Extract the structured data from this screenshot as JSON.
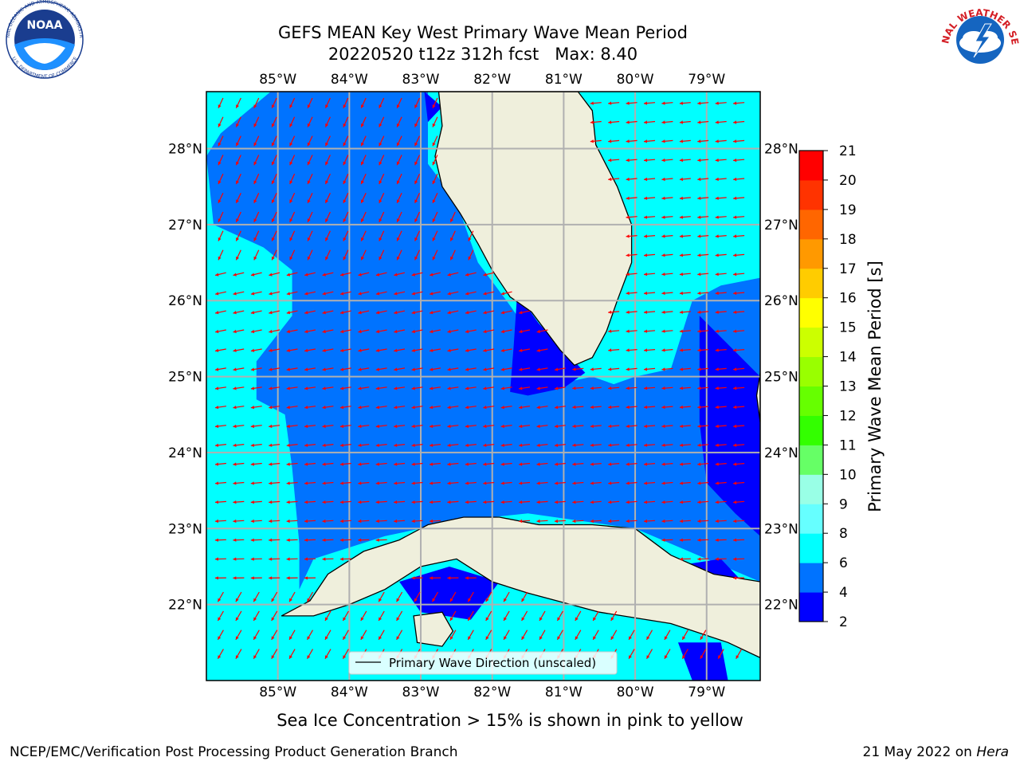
{
  "chart_data": {
    "type": "heatmap",
    "title_line1": "GEFS MEAN Key West Primary Wave Mean Period",
    "title_line2": "20220520 t12z 312h fcst   Max: 8.40",
    "region": "Key West",
    "max_value": 8.4,
    "x_axis": {
      "lim": [
        -86.0,
        -78.25
      ],
      "ticks": [
        -85,
        -84,
        -83,
        -82,
        -81,
        -80,
        -79
      ],
      "tick_labels": [
        "85°W",
        "84°W",
        "83°W",
        "82°W",
        "81°W",
        "80°W",
        "79°W"
      ]
    },
    "y_axis": {
      "lim": [
        21.0,
        28.75
      ],
      "ticks": [
        22,
        23,
        24,
        25,
        26,
        27,
        28
      ],
      "tick_labels": [
        "22°N",
        "23°N",
        "24°N",
        "25°N",
        "26°N",
        "27°N",
        "28°N"
      ]
    },
    "grid": true,
    "colorbar": {
      "label": "Primary Wave Mean Period [s]",
      "levels": [
        2,
        4,
        6,
        8,
        9,
        10,
        11,
        12,
        13,
        14,
        15,
        16,
        17,
        18,
        19,
        20,
        21
      ],
      "tick_labels": [
        "2",
        "4",
        "6",
        "8",
        "9",
        "10",
        "11",
        "12",
        "13",
        "14",
        "15",
        "16",
        "17",
        "18",
        "19",
        "20",
        "21"
      ],
      "colors": [
        "#0000ff",
        "#0073ff",
        "#00ffff",
        "#66ffff",
        "#99ffe6",
        "#66ff66",
        "#33ff00",
        "#66ff00",
        "#99ff00",
        "#ccff00",
        "#ffff00",
        "#ffcc00",
        "#ff9900",
        "#ff6600",
        "#ff3300",
        "#ff0000"
      ]
    },
    "period_fields": [
      {
        "level": "4-6 s",
        "color": "#0073ff",
        "polygon": [
          [
            -85.1,
            28.75
          ],
          [
            -82.9,
            28.75
          ],
          [
            -82.9,
            27.8
          ],
          [
            -82.5,
            27.3
          ],
          [
            -82.2,
            26.5
          ],
          [
            -81.8,
            26.0
          ],
          [
            -81.5,
            25.6
          ],
          [
            -81.1,
            24.9
          ],
          [
            -80.6,
            25.0
          ],
          [
            -80.3,
            24.9
          ],
          [
            -80.0,
            25.0
          ],
          [
            -79.5,
            25.1
          ],
          [
            -79.2,
            26.0
          ],
          [
            -78.8,
            26.2
          ],
          [
            -78.25,
            26.3
          ],
          [
            -78.25,
            22.3
          ],
          [
            -79.0,
            22.6
          ],
          [
            -80.0,
            23.0
          ],
          [
            -81.5,
            23.2
          ],
          [
            -82.5,
            23.1
          ],
          [
            -83.5,
            22.9
          ],
          [
            -84.5,
            22.6
          ],
          [
            -84.7,
            22.2
          ],
          [
            -84.7,
            22.8
          ],
          [
            -84.8,
            23.8
          ],
          [
            -84.9,
            24.5
          ],
          [
            -85.3,
            24.7
          ],
          [
            -85.3,
            25.2
          ],
          [
            -84.8,
            25.8
          ],
          [
            -84.8,
            26.4
          ],
          [
            -85.2,
            26.7
          ],
          [
            -85.9,
            27.0
          ],
          [
            -86.0,
            27.9
          ],
          [
            -85.8,
            28.2
          ]
        ]
      },
      {
        "level": "2-4 s",
        "color": "#0000ff",
        "polygon": [
          [
            -81.65,
            26.1
          ],
          [
            -81.35,
            25.7
          ],
          [
            -81.0,
            25.35
          ],
          [
            -80.7,
            25.05
          ],
          [
            -81.0,
            24.85
          ],
          [
            -81.5,
            24.75
          ],
          [
            -81.75,
            24.8
          ],
          [
            -81.7,
            25.4
          ]
        ]
      },
      {
        "level": "2-4 s",
        "color": "#0000ff",
        "polygon": [
          [
            -79.1,
            25.8
          ],
          [
            -78.25,
            25.0
          ],
          [
            -78.25,
            22.9
          ],
          [
            -78.6,
            23.2
          ],
          [
            -79.0,
            23.6
          ],
          [
            -79.1,
            24.4
          ]
        ]
      },
      {
        "level": "2-4 s",
        "color": "#0000ff",
        "polygon": [
          [
            -83.3,
            22.3
          ],
          [
            -82.6,
            22.5
          ],
          [
            -81.9,
            22.3
          ],
          [
            -82.3,
            21.8
          ],
          [
            -83.0,
            21.9
          ]
        ]
      },
      {
        "level": "2-4 s",
        "color": "#0000ff",
        "polygon": [
          [
            -79.4,
            21.5
          ],
          [
            -78.8,
            21.5
          ],
          [
            -78.7,
            21.0
          ],
          [
            -79.2,
            21.0
          ]
        ]
      },
      {
        "level": "2-4 s",
        "color": "#0000ff",
        "polygon": [
          [
            -79.5,
            22.5
          ],
          [
            -78.8,
            22.6
          ],
          [
            -78.5,
            22.3
          ],
          [
            -79.2,
            22.3
          ]
        ]
      },
      {
        "level": "2-4 s",
        "color": "#0000ff",
        "polygon": [
          [
            -82.95,
            28.75
          ],
          [
            -82.7,
            28.55
          ],
          [
            -82.9,
            28.35
          ]
        ]
      }
    ],
    "land_polygons": [
      {
        "name": "Florida",
        "polygon": [
          [
            -82.75,
            28.75
          ],
          [
            -82.7,
            28.3
          ],
          [
            -82.8,
            27.9
          ],
          [
            -82.7,
            27.5
          ],
          [
            -82.45,
            27.15
          ],
          [
            -82.2,
            26.75
          ],
          [
            -82.0,
            26.4
          ],
          [
            -81.75,
            26.05
          ],
          [
            -81.45,
            25.85
          ],
          [
            -81.25,
            25.6
          ],
          [
            -81.05,
            25.35
          ],
          [
            -80.85,
            25.15
          ],
          [
            -80.6,
            25.25
          ],
          [
            -80.4,
            25.6
          ],
          [
            -80.25,
            26.0
          ],
          [
            -80.05,
            26.5
          ],
          [
            -80.05,
            27.0
          ],
          [
            -80.25,
            27.5
          ],
          [
            -80.55,
            28.05
          ],
          [
            -80.6,
            28.5
          ],
          [
            -80.8,
            28.75
          ]
        ]
      },
      {
        "name": "Cuba",
        "polygon": [
          [
            -84.95,
            21.85
          ],
          [
            -84.55,
            22.05
          ],
          [
            -84.3,
            22.4
          ],
          [
            -83.8,
            22.7
          ],
          [
            -83.3,
            22.85
          ],
          [
            -82.9,
            23.05
          ],
          [
            -82.4,
            23.15
          ],
          [
            -81.9,
            23.15
          ],
          [
            -81.35,
            23.05
          ],
          [
            -80.6,
            23.05
          ],
          [
            -80.0,
            23.0
          ],
          [
            -79.5,
            22.65
          ],
          [
            -78.9,
            22.4
          ],
          [
            -78.25,
            22.3
          ],
          [
            -78.25,
            21.3
          ],
          [
            -78.7,
            21.5
          ],
          [
            -79.5,
            21.75
          ],
          [
            -80.5,
            21.9
          ],
          [
            -81.5,
            22.15
          ],
          [
            -82.0,
            22.3
          ],
          [
            -82.5,
            22.6
          ],
          [
            -83.0,
            22.5
          ],
          [
            -83.5,
            22.2
          ],
          [
            -84.0,
            22.0
          ],
          [
            -84.5,
            21.85
          ]
        ]
      },
      {
        "name": "Isla de la Juventud",
        "polygon": [
          [
            -83.1,
            21.85
          ],
          [
            -82.7,
            21.9
          ],
          [
            -82.55,
            21.65
          ],
          [
            -82.7,
            21.45
          ],
          [
            -83.05,
            21.5
          ]
        ]
      },
      {
        "name": "Andros",
        "polygon": [
          [
            -78.25,
            25.05
          ],
          [
            -78.3,
            24.75
          ],
          [
            -78.25,
            24.4
          ]
        ]
      }
    ],
    "wave_direction": {
      "legend": "Primary Wave Direction (unscaled)",
      "arrow_color": "#ff0000"
    },
    "note": "Sea Ice Concentration > 15% is shown in pink to yellow",
    "footer_left": "NCEP/EMC/Verification Post Processing Product Generation Branch",
    "footer_right_date": "21 May 2022 on ",
    "footer_right_host": "Hera",
    "logos": {
      "left": "NOAA",
      "left_ring": "NATIONAL OCEANIC AND ATMOSPHERIC ADMINISTRATION",
      "left_ring2": "U.S. DEPARTMENT OF COMMERCE",
      "right": "NATIONAL WEATHER SERVICE"
    }
  }
}
